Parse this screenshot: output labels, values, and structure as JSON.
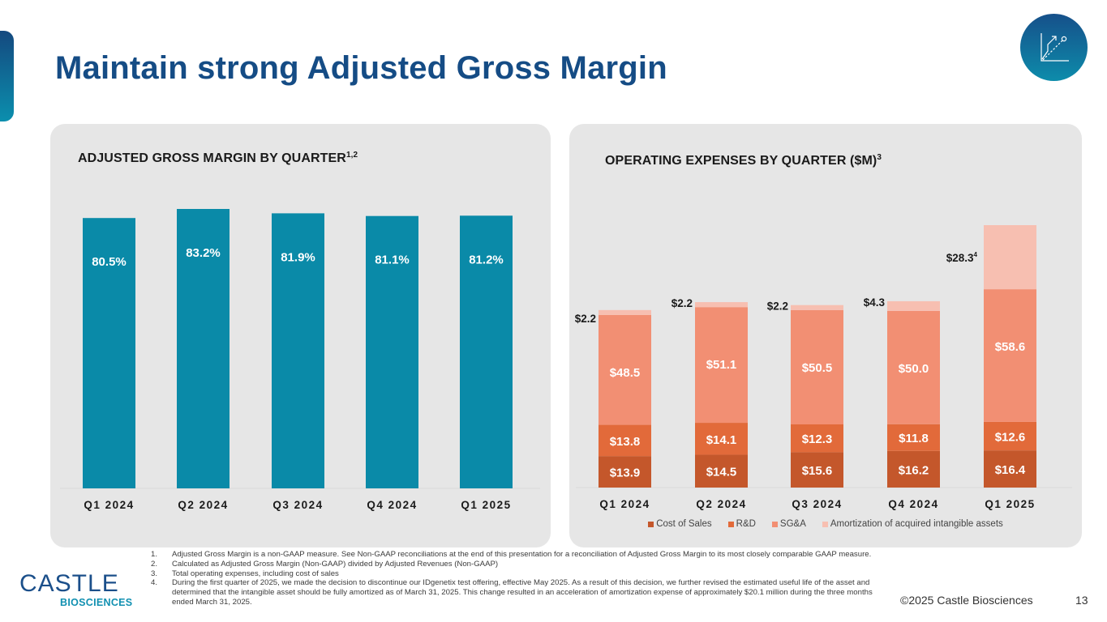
{
  "header": {
    "title": "Maintain strong Adjusted Gross Margin",
    "badge_icon": "growth-chart-icon"
  },
  "colors": {
    "title": "#154c85",
    "margin_bar": "#0a8aa8",
    "cost_of_sales": "#c4572b",
    "rnd": "#e26a3a",
    "sga": "#f28f73",
    "amortization": "#f7bfb1",
    "panel_bg": "#e6e6e6"
  },
  "chart_data": [
    {
      "type": "bar",
      "title": "ADJUSTED GROSS MARGIN BY QUARTER",
      "title_superscript": "1,2",
      "categories": [
        "Q1 2024",
        "Q2 2024",
        "Q3 2024",
        "Q4 2024",
        "Q1 2025"
      ],
      "values": [
        80.5,
        83.2,
        81.9,
        81.1,
        81.2
      ],
      "value_labels": [
        "80.5%",
        "83.2%",
        "81.9%",
        "81.1%",
        "81.2%"
      ],
      "unit": "%",
      "xlabel": "",
      "ylabel": "",
      "ylim": [
        0,
        83.2
      ],
      "grid": false,
      "legend": "none"
    },
    {
      "type": "bar",
      "stacked": true,
      "title": "OPERATING EXPENSES BY QUARTER ($M)",
      "title_superscript": "3",
      "categories": [
        "Q1 2024",
        "Q2 2024",
        "Q3 2024",
        "Q4 2024",
        "Q1 2025"
      ],
      "series": [
        {
          "name": "Cost of Sales",
          "values": [
            13.9,
            14.5,
            15.6,
            16.2,
            16.4
          ],
          "labels": [
            "$13.9",
            "$14.5",
            "$15.6",
            "$16.2",
            "$16.4"
          ]
        },
        {
          "name": "R&D",
          "values": [
            13.8,
            14.1,
            12.3,
            11.8,
            12.6
          ],
          "labels": [
            "$13.8",
            "$14.1",
            "$12.3",
            "$11.8",
            "$12.6"
          ]
        },
        {
          "name": "SG&A",
          "values": [
            48.5,
            51.1,
            50.5,
            50.0,
            58.6
          ],
          "labels": [
            "$48.5",
            "$51.1",
            "$50.5",
            "$50.0",
            "$58.6"
          ]
        },
        {
          "name": "Amortization of acquired intangible assets",
          "values": [
            2.2,
            2.2,
            2.2,
            4.3,
            28.3
          ],
          "labels": [
            "$2.2",
            "$2.2",
            "$2.2",
            "$4.3",
            "$28.3"
          ],
          "label_superscripts": [
            "",
            "",
            "",
            "",
            "4"
          ]
        }
      ],
      "unit": "$M",
      "xlabel": "",
      "ylabel": "",
      "ylim": [
        0,
        115.9
      ],
      "grid": false,
      "legend": "bottom"
    }
  ],
  "footnotes": [
    {
      "num": "1.",
      "text": "Adjusted Gross Margin is a non-GAAP measure. See Non-GAAP reconciliations at the end of this presentation for a reconciliation of Adjusted Gross Margin to its most closely comparable GAAP measure."
    },
    {
      "num": "2.",
      "text": "Calculated as Adjusted Gross Margin (Non-GAAP) divided by Adjusted Revenues (Non-GAAP)"
    },
    {
      "num": "3.",
      "text": "Total operating expenses, including cost of sales"
    },
    {
      "num": "4.",
      "text": "During the first quarter of 2025, we made the decision to discontinue our IDgenetix test offering, effective May 2025. As a result of this decision, we further revised the estimated useful life of the asset and determined that the intangible asset should be fully amortized as of March 31, 2025. This change resulted in an acceleration of amortization expense of approximately $20.1 million during the three months ended March 31, 2025."
    }
  ],
  "footer": {
    "logo_main": "CASTLE",
    "logo_sub": "BIOSCIENCES",
    "copyright": "©2025 Castle Biosciences",
    "page_number": "13"
  }
}
